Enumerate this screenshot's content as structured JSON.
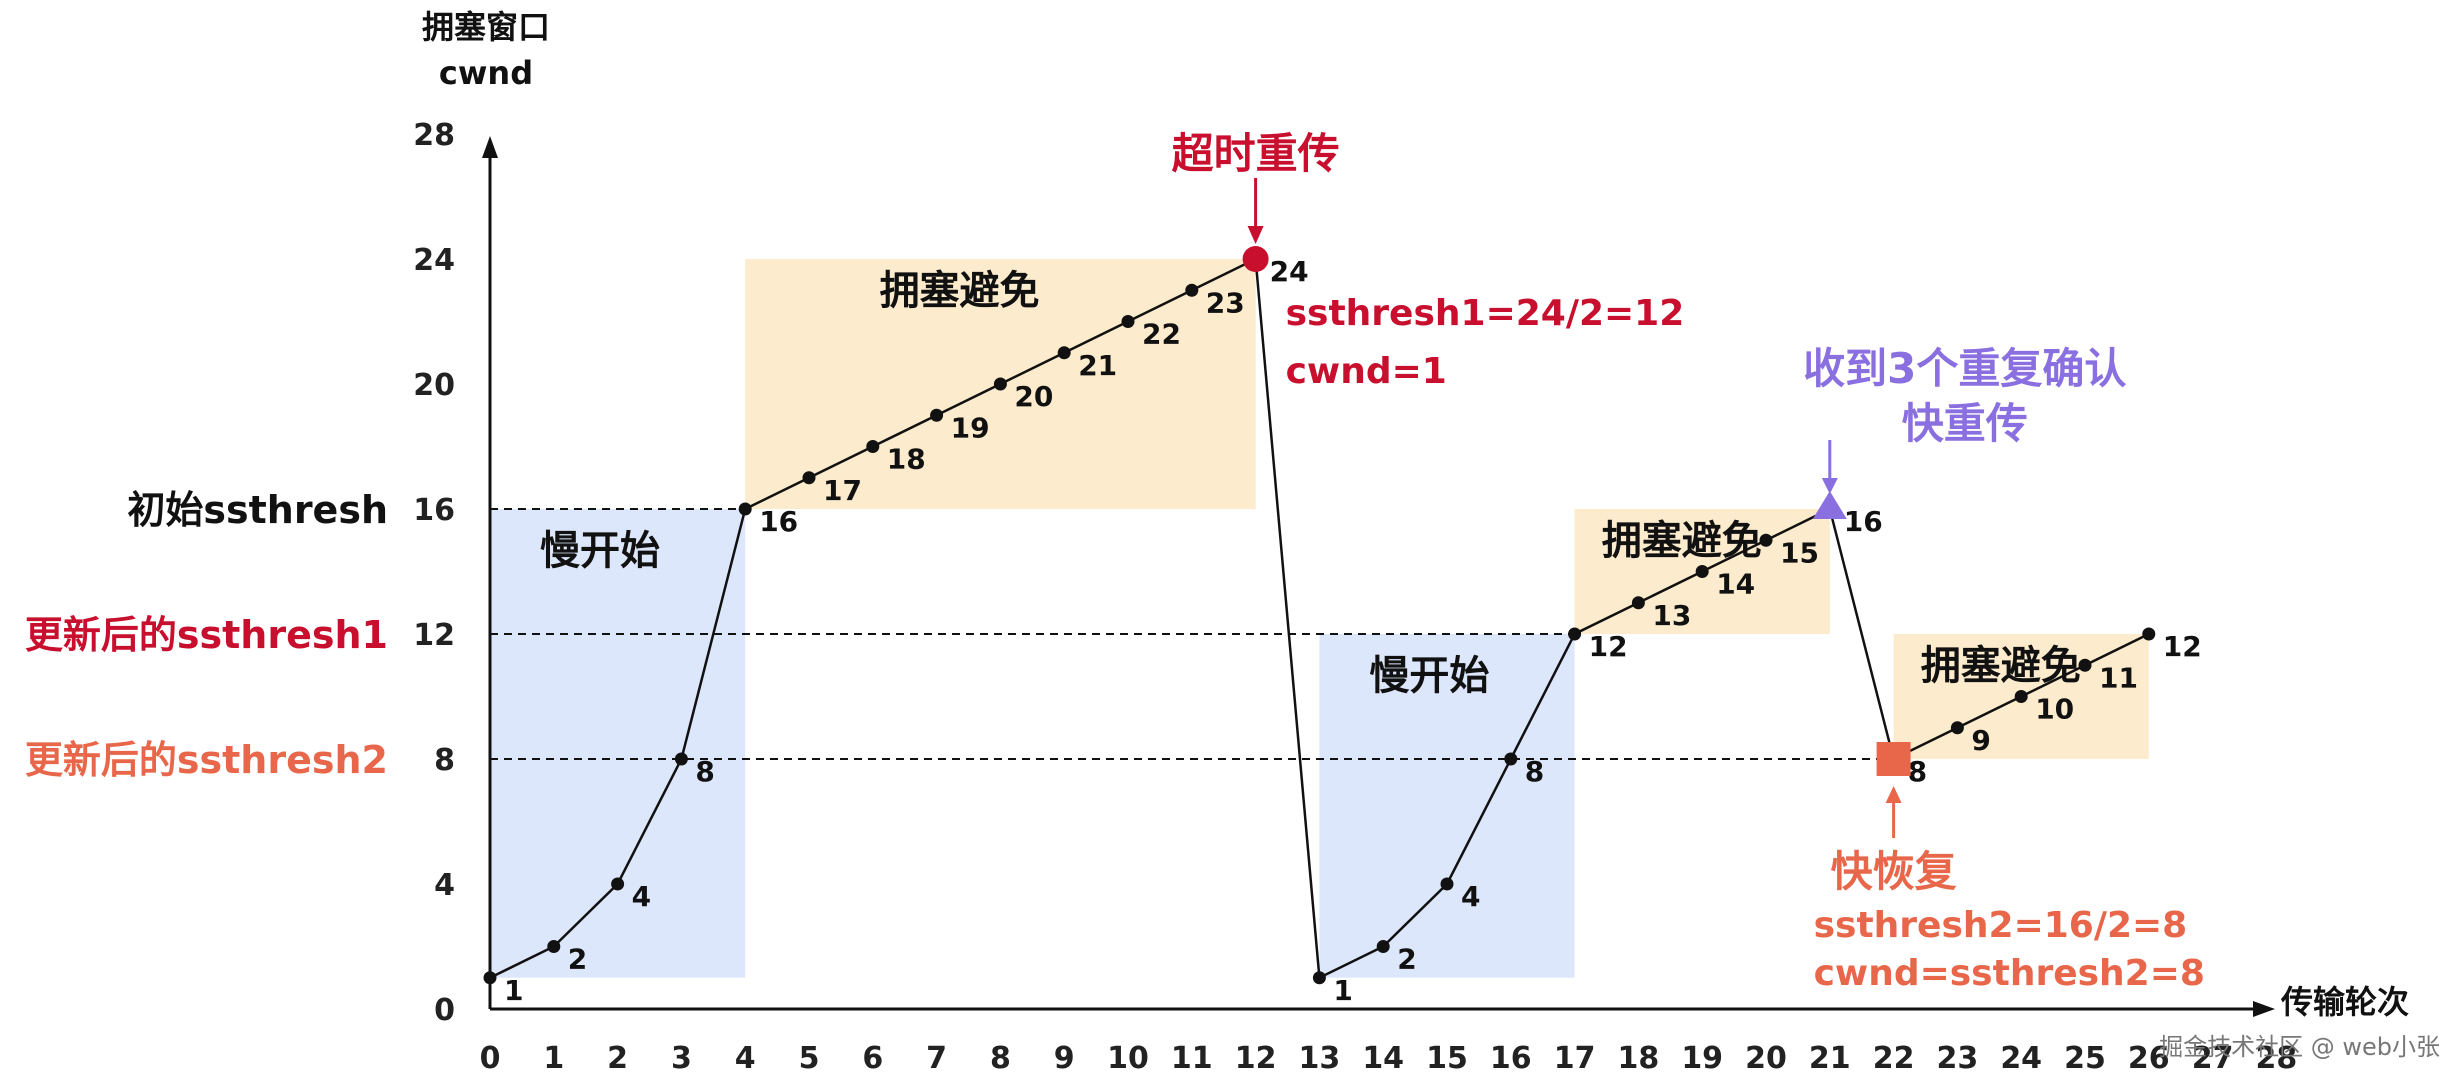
{
  "chart_data": {
    "type": "line",
    "ylabel_line1": "拥塞窗口",
    "ylabel_line2": "cwnd",
    "xlabel": "传输轮次",
    "x_ticks": [
      0,
      1,
      2,
      3,
      4,
      5,
      6,
      7,
      8,
      9,
      10,
      11,
      12,
      13,
      14,
      15,
      16,
      17,
      18,
      19,
      20,
      21,
      22,
      23,
      24,
      25,
      26,
      27,
      28
    ],
    "y_ticks": [
      0,
      4,
      8,
      12,
      16,
      20,
      24,
      28
    ],
    "xlim": [
      0,
      28
    ],
    "ylim": [
      0,
      28
    ],
    "series": [
      {
        "x": [
          0,
          1,
          2,
          3,
          4,
          5,
          6,
          7,
          8,
          9,
          10,
          11,
          12,
          13,
          14,
          15,
          16,
          17,
          18,
          19,
          20,
          21,
          22,
          23,
          24,
          25,
          26
        ],
        "y": [
          1,
          2,
          4,
          8,
          16,
          17,
          18,
          19,
          20,
          21,
          22,
          23,
          24,
          1,
          2,
          4,
          8,
          12,
          13,
          14,
          15,
          16,
          8,
          9,
          10,
          11,
          12
        ],
        "labels": [
          "1",
          "2",
          "4",
          "8",
          "16",
          "17",
          "18",
          "19",
          "20",
          "21",
          "22",
          "23",
          "24",
          "1",
          "2",
          "4",
          "8",
          "12",
          "13",
          "14",
          "15",
          "16",
          "8",
          "9",
          "10",
          "11",
          "12"
        ]
      }
    ],
    "thresholds": [
      {
        "label": "初始ssthresh",
        "y": 16,
        "color": "#111111"
      },
      {
        "label": "更新后的ssthresh1",
        "y": 12,
        "color": "#c8102e"
      },
      {
        "label": "更新后的ssthresh2",
        "y": 8,
        "color": "#e8674a"
      }
    ],
    "regions": [
      {
        "label": "慢开始",
        "type": "slow",
        "x": [
          0,
          4
        ],
        "y": [
          1,
          16
        ]
      },
      {
        "label": "拥塞避免",
        "type": "avoid",
        "x": [
          4,
          12
        ],
        "y": [
          16,
          24
        ]
      },
      {
        "label": "慢开始",
        "type": "slow",
        "x": [
          13,
          17
        ],
        "y": [
          1,
          12
        ]
      },
      {
        "label": "拥塞避免",
        "type": "avoid",
        "x": [
          17,
          21
        ],
        "y": [
          12,
          16
        ]
      },
      {
        "label": "拥塞避免",
        "type": "avoid",
        "x": [
          22,
          26
        ],
        "y": [
          8,
          12
        ]
      }
    ],
    "events": [
      {
        "title": "超时重传",
        "lines": [
          "ssthresh1=24/2=12",
          "cwnd=1"
        ],
        "x": 12,
        "y": 24,
        "color": "#c8102e",
        "marker": "circle"
      },
      {
        "title": "收到3个重复确认",
        "lines": [
          "快重传"
        ],
        "x": 21,
        "y": 16,
        "color": "#8a6fe0",
        "marker": "triangle"
      },
      {
        "title": "快恢复",
        "lines": [
          "ssthresh2=16/2=8",
          "cwnd=ssthresh2=8"
        ],
        "x": 22,
        "y": 8,
        "color": "#e8674a",
        "marker": "square"
      }
    ],
    "colors": {
      "slow_fill": "#dde7fb",
      "avoid_fill": "#fcebcc",
      "line": "#111111"
    }
  },
  "watermark": "掘金技术社区 @ web小张"
}
